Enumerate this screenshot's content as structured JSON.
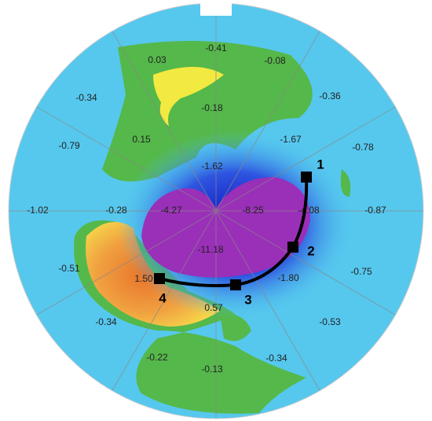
{
  "zone_values": [
    "-0.41",
    "0.03",
    "-0.08",
    "-0.34",
    "-0.18",
    "-0.36",
    "0.15",
    "-0.79",
    "-1.67",
    "-0.78",
    "-1.62",
    "-1.02",
    "-0.28",
    "-4.27",
    "-8.25",
    "-4.08",
    "-0.87",
    "-11.18",
    "-0.51",
    "-1.80",
    "-0.75",
    "1.50",
    "0.57",
    "-0.34",
    "-0.53",
    "-0.22",
    "-0.34",
    "-0.13"
  ],
  "point_labels": [
    "1",
    "2",
    "3",
    "4"
  ]
}
